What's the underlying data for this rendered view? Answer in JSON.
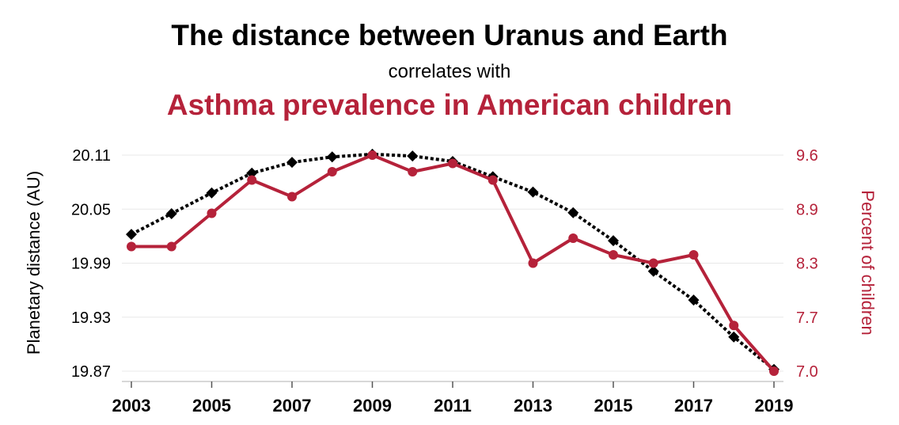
{
  "header": {
    "title": "The distance between Uranus and Earth",
    "subtitle": "correlates with",
    "title2": "Asthma prevalence in American children"
  },
  "colors": {
    "left_series": "#000000",
    "right_series": "#b5223a",
    "grid": "#e8e8e8"
  },
  "chart_data": {
    "type": "line",
    "x": [
      2003,
      2004,
      2005,
      2006,
      2007,
      2008,
      2009,
      2010,
      2011,
      2012,
      2013,
      2014,
      2015,
      2016,
      2017,
      2018,
      2019
    ],
    "x_ticks": [
      "2003",
      "2005",
      "2007",
      "2009",
      "2011",
      "2013",
      "2015",
      "2017",
      "2019"
    ],
    "ylabel": "Planetary distance (AU)",
    "ylabel_right": "Percent of children",
    "ylim": [
      19.87,
      20.11
    ],
    "ylim_right": [
      7.0,
      9.6
    ],
    "y_ticks": [
      "20.11",
      "20.05",
      "19.99",
      "19.93",
      "19.87"
    ],
    "y_ticks_right": [
      "9.6",
      "8.9",
      "8.3",
      "7.7",
      "7.0"
    ],
    "grid": true,
    "series": [
      {
        "axis": "left",
        "style": "dotted-diamond",
        "values": [
          20.022,
          20.045,
          20.068,
          20.09,
          20.102,
          20.108,
          20.111,
          20.109,
          20.103,
          20.086,
          20.069,
          20.046,
          20.015,
          19.981,
          19.949,
          19.908,
          19.872
        ]
      },
      {
        "axis": "right",
        "style": "solid-circle",
        "values": [
          8.5,
          8.5,
          8.9,
          9.3,
          9.1,
          9.4,
          9.6,
          9.4,
          9.5,
          9.3,
          8.3,
          8.6,
          8.4,
          8.3,
          8.4,
          7.55,
          7.0
        ]
      }
    ]
  }
}
